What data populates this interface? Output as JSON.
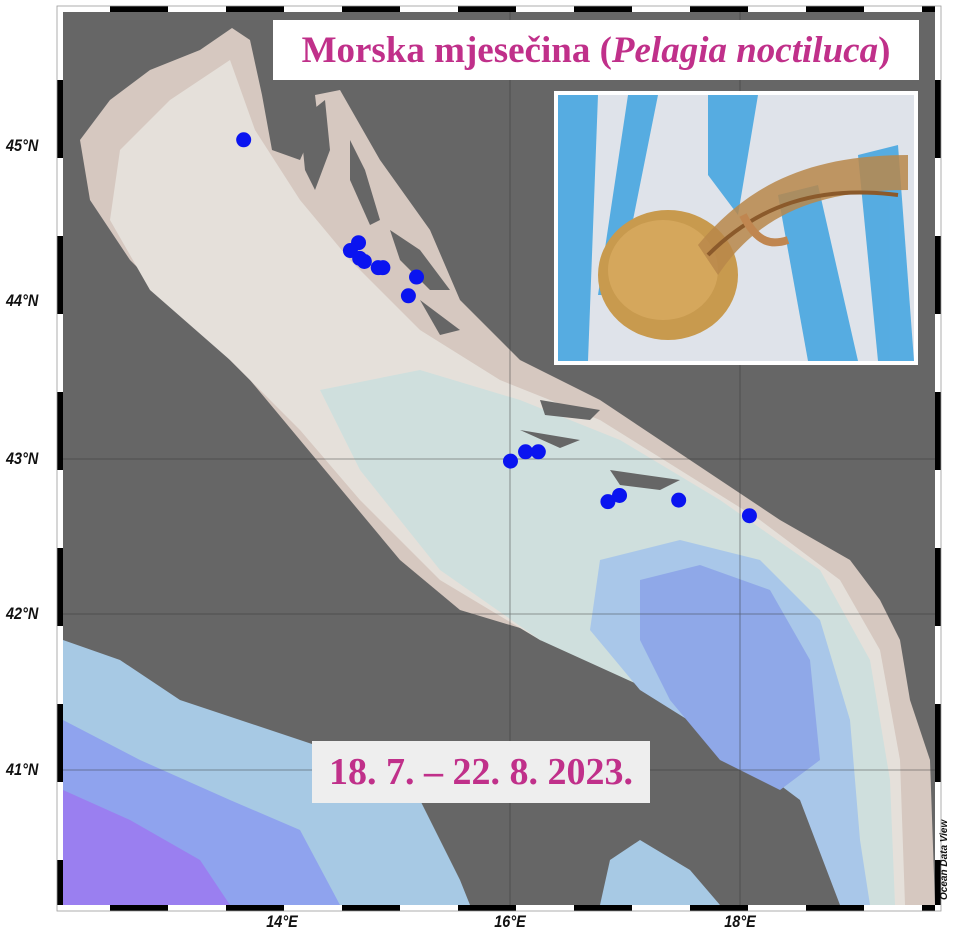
{
  "title": {
    "main": "Morska mjesečina (",
    "species": "Pelagia noctiluca",
    "close": ")"
  },
  "date_range": "18. 7. – 22. 8. 2023.",
  "watermark": "Ocean Data View",
  "axes": {
    "lat_labels": [
      "45°N",
      "44°N",
      "43°N",
      "42°N",
      "41°N"
    ],
    "lat_values": [
      45,
      44,
      43,
      42,
      41
    ],
    "lon_labels": [
      "14°E",
      "16°E",
      "18°E"
    ],
    "lon_values": [
      14,
      16,
      18
    ],
    "lon_range": [
      12.2,
      19.7
    ],
    "lat_range": [
      40.2,
      45.9
    ]
  },
  "colors": {
    "land": "#666666",
    "shelf": "#d9ccc4",
    "shallow": "#e6e2dc",
    "mid": "#cfe0df",
    "deep": "#8fa8e8",
    "deepest": "#9a7ff0",
    "points": "#0a14f0",
    "title": "#c0308a"
  },
  "photo": {
    "subject": "jellyfish-in-net-photo"
  },
  "observations": [
    {
      "lon": 13.73,
      "lat": 45.04
    },
    {
      "lon": 14.72,
      "lat": 44.38
    },
    {
      "lon": 14.65,
      "lat": 44.33
    },
    {
      "lon": 14.73,
      "lat": 44.28
    },
    {
      "lon": 14.77,
      "lat": 44.26
    },
    {
      "lon": 14.89,
      "lat": 44.22
    },
    {
      "lon": 14.93,
      "lat": 44.22
    },
    {
      "lon": 15.22,
      "lat": 44.16
    },
    {
      "lon": 15.15,
      "lat": 44.04
    },
    {
      "lon": 16.03,
      "lat": 42.98
    },
    {
      "lon": 16.16,
      "lat": 43.04
    },
    {
      "lon": 16.27,
      "lat": 43.04
    },
    {
      "lon": 16.87,
      "lat": 42.72
    },
    {
      "lon": 16.97,
      "lat": 42.76
    },
    {
      "lon": 17.48,
      "lat": 42.73
    },
    {
      "lon": 18.09,
      "lat": 42.63
    }
  ]
}
